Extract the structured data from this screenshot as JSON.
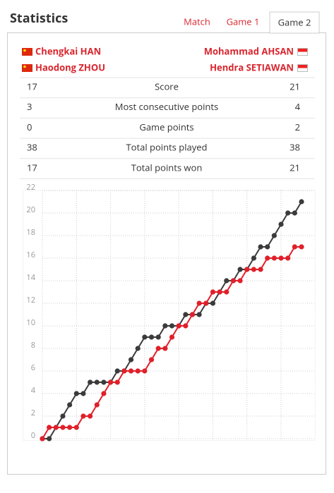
{
  "header": {
    "title": "Statistics",
    "tabs": [
      "Match",
      "Game 1",
      "Game 2"
    ],
    "active_tab": 2
  },
  "players": {
    "left": [
      "Chengkai HAN",
      "Haodong ZHOU"
    ],
    "right": [
      "Mohammad AHSAN",
      "Hendra SETIAWAN"
    ]
  },
  "table": {
    "rows": [
      [
        "17",
        "Score",
        "21"
      ],
      [
        "3",
        "Most consecutive points",
        "4"
      ],
      [
        "0",
        "Game points",
        "2"
      ],
      [
        "38",
        "Total points played",
        "38"
      ],
      [
        "17",
        "Total points won",
        "21"
      ]
    ]
  },
  "chart_data": {
    "type": "line",
    "ylim": [
      0,
      22
    ],
    "yticks": [
      0,
      2,
      4,
      6,
      8,
      10,
      12,
      14,
      16,
      18,
      20,
      22
    ],
    "grid": true,
    "series": [
      {
        "name": "Indonesia",
        "color": "#3b3b3b",
        "values": [
          0,
          0,
          1,
          2,
          3,
          4,
          4,
          5,
          5,
          5,
          5,
          6,
          6,
          7,
          8,
          9,
          9,
          9,
          10,
          10,
          10,
          11,
          11,
          11,
          12,
          12,
          13,
          14,
          14,
          15,
          15,
          16,
          17,
          17,
          18,
          19,
          20,
          20,
          21
        ]
      },
      {
        "name": "China",
        "color": "#e0202a",
        "values": [
          0,
          1,
          1,
          1,
          1,
          1,
          2,
          2,
          3,
          4,
          5,
          5,
          6,
          6,
          6,
          6,
          7,
          8,
          8,
          9,
          10,
          10,
          11,
          12,
          12,
          13,
          13,
          13,
          14,
          14,
          15,
          15,
          15,
          16,
          16,
          16,
          16,
          17,
          17
        ]
      }
    ]
  }
}
